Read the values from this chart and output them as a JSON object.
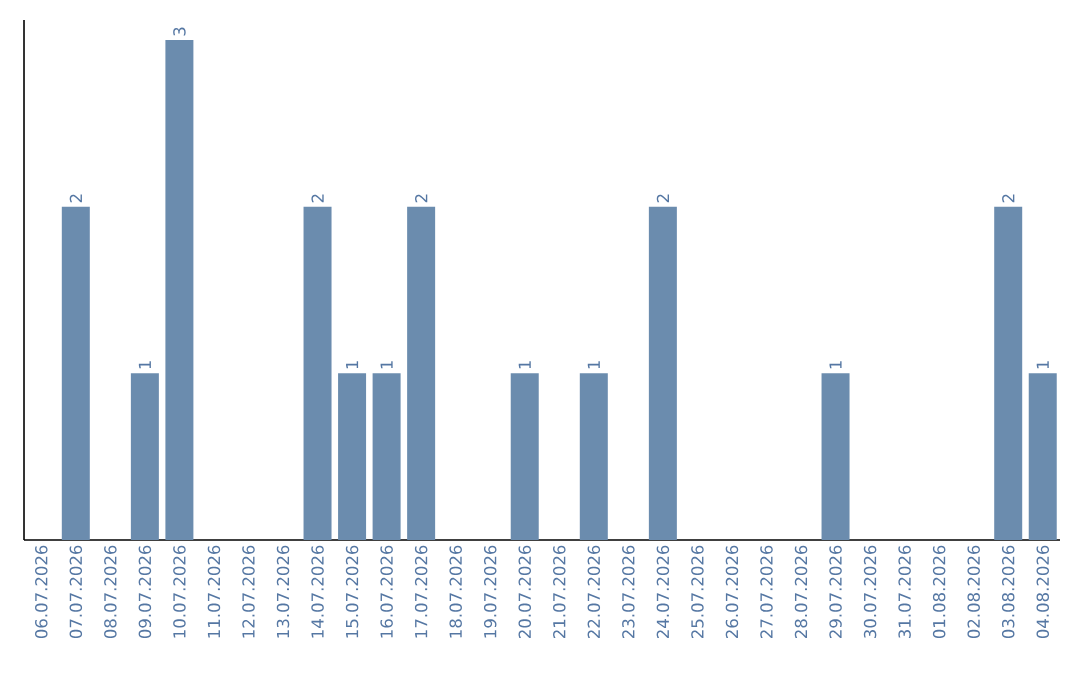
{
  "chart_data": {
    "type": "bar",
    "color": "#6b8cae",
    "grid": false,
    "categories": [
      "06.07.2026",
      "07.07.2026",
      "08.07.2026",
      "09.07.2026",
      "10.07.2026",
      "11.07.2026",
      "12.07.2026",
      "13.07.2026",
      "14.07.2026",
      "15.07.2026",
      "16.07.2026",
      "17.07.2026",
      "18.07.2026",
      "19.07.2026",
      "20.07.2026",
      "21.07.2026",
      "22.07.2026",
      "23.07.2026",
      "24.07.2026",
      "25.07.2026",
      "26.07.2026",
      "27.07.2026",
      "28.07.2026",
      "29.07.2026",
      "30.07.2026",
      "31.07.2026",
      "01.08.2026",
      "02.08.2026",
      "03.08.2026",
      "04.08.2026"
    ],
    "values": [
      0,
      2,
      0,
      1,
      3,
      0,
      0,
      0,
      2,
      1,
      1,
      2,
      0,
      0,
      1,
      0,
      1,
      0,
      2,
      0,
      0,
      0,
      0,
      1,
      0,
      0,
      0,
      0,
      2,
      1
    ],
    "value_labels": [
      null,
      "2",
      null,
      "1",
      "3",
      null,
      null,
      null,
      "2",
      "1",
      "1",
      "2",
      null,
      null,
      "1",
      null,
      "1",
      null,
      "2",
      null,
      null,
      null,
      null,
      "1",
      null,
      null,
      null,
      null,
      "2",
      "1"
    ],
    "tick_labels": "x"
  }
}
